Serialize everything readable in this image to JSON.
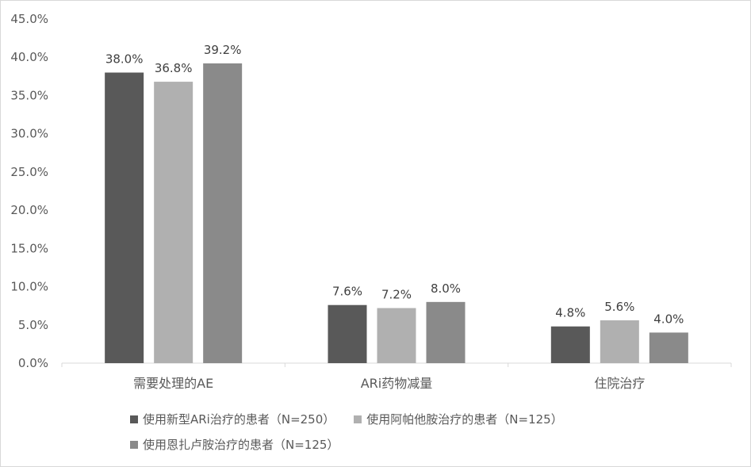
{
  "chart_data": {
    "type": "bar",
    "categories": [
      "需要处理的AE",
      "ARi药物减量",
      "住院治疗"
    ],
    "series": [
      {
        "name": "使用新型ARi治疗的患者（N=250）",
        "values": [
          38.0,
          7.6,
          4.8
        ],
        "labels": [
          "38.0%",
          "7.6%",
          "4.8%"
        ],
        "color": "#595959"
      },
      {
        "name": "使用阿帕他胺治疗的患者（N=125）",
        "values": [
          36.8,
          7.2,
          5.6
        ],
        "labels": [
          "36.8%",
          "7.2%",
          "5.6%"
        ],
        "color": "#b0b0b0"
      },
      {
        "name": "使用恩扎卢胺治疗的患者（N=125）",
        "values": [
          39.2,
          8.0,
          4.0
        ],
        "labels": [
          "39.2%",
          "8.0%",
          "4.0%"
        ],
        "color": "#8a8a8a"
      }
    ],
    "ylim": [
      0,
      45
    ],
    "yticks": [
      "0.0%",
      "5.0%",
      "10.0%",
      "15.0%",
      "20.0%",
      "25.0%",
      "30.0%",
      "35.0%",
      "40.0%",
      "45.0%"
    ],
    "grid": false,
    "legend_position": "bottom"
  },
  "legend": {
    "items": [
      {
        "label": "使用新型ARi治疗的患者（N=250）",
        "color": "#595959"
      },
      {
        "label": "使用阿帕他胺治疗的患者（N=125）",
        "color": "#b0b0b0"
      },
      {
        "label": "使用恩扎卢胺治疗的患者（N=125）",
        "color": "#8a8a8a"
      }
    ]
  }
}
